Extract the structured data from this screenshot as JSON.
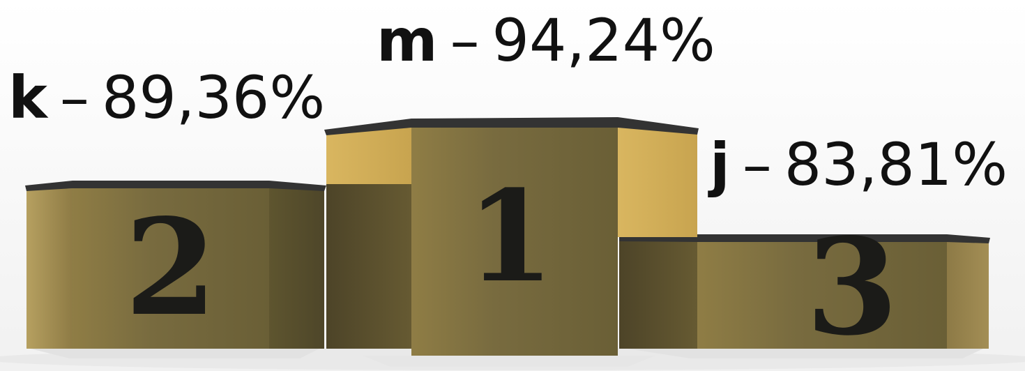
{
  "podium": {
    "first": {
      "rank": "1",
      "letter": "m",
      "separator": "–",
      "score": "94,24%"
    },
    "second": {
      "rank": "2",
      "letter": "k",
      "separator": "–",
      "score": "89,36%"
    },
    "third": {
      "rank": "3",
      "letter": "j",
      "separator": "–",
      "score": "83,81%"
    }
  },
  "colors": {
    "background": "#ffffff",
    "podium_gold": "#b9a45f",
    "podium_dark": "#6f6539",
    "podium_shadow": "#4d4428",
    "podium_top": "#2f2f2f",
    "number": "#1a1a1a"
  }
}
